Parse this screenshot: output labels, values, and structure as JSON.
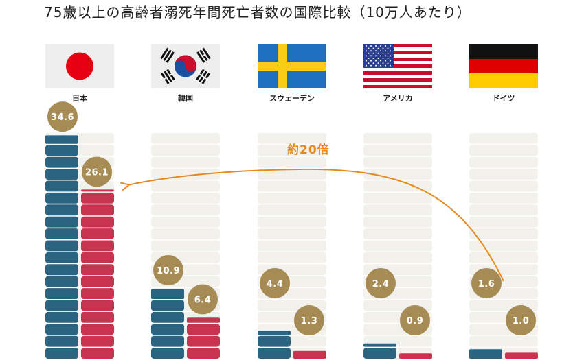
{
  "title": "75歳以上の高齢者溺死年間死亡者数の国際比較（10万人あたり）",
  "chart_data": {
    "type": "bar",
    "categories": [
      "日本",
      "韓国",
      "スウェーデン",
      "アメリカ",
      "ドイツ"
    ],
    "series": [
      {
        "values": [
          34.6,
          10.9,
          4.4,
          2.4,
          1.6
        ]
      },
      {
        "values": [
          26.1,
          6.4,
          1.3,
          0.9,
          1.0
        ]
      }
    ],
    "value_labels": [
      [
        "34.6",
        "26.1"
      ],
      [
        "10.9",
        "6.4"
      ],
      [
        "4.4",
        "1.3"
      ],
      [
        "2.4",
        "0.9"
      ],
      [
        "1.6",
        "1.0"
      ]
    ],
    "ylim": [
      0,
      35
    ],
    "annotation": "約20倍",
    "flags": [
      "japan-flag",
      "korea-flag",
      "sweden-flag",
      "usa-flag",
      "germany-flag"
    ],
    "colors": {
      "series1": "#2b6480",
      "series2": "#c8344f",
      "bubble": "#a68b55",
      "empty": "#f3f1ec",
      "arrow": "#e8891c"
    }
  }
}
